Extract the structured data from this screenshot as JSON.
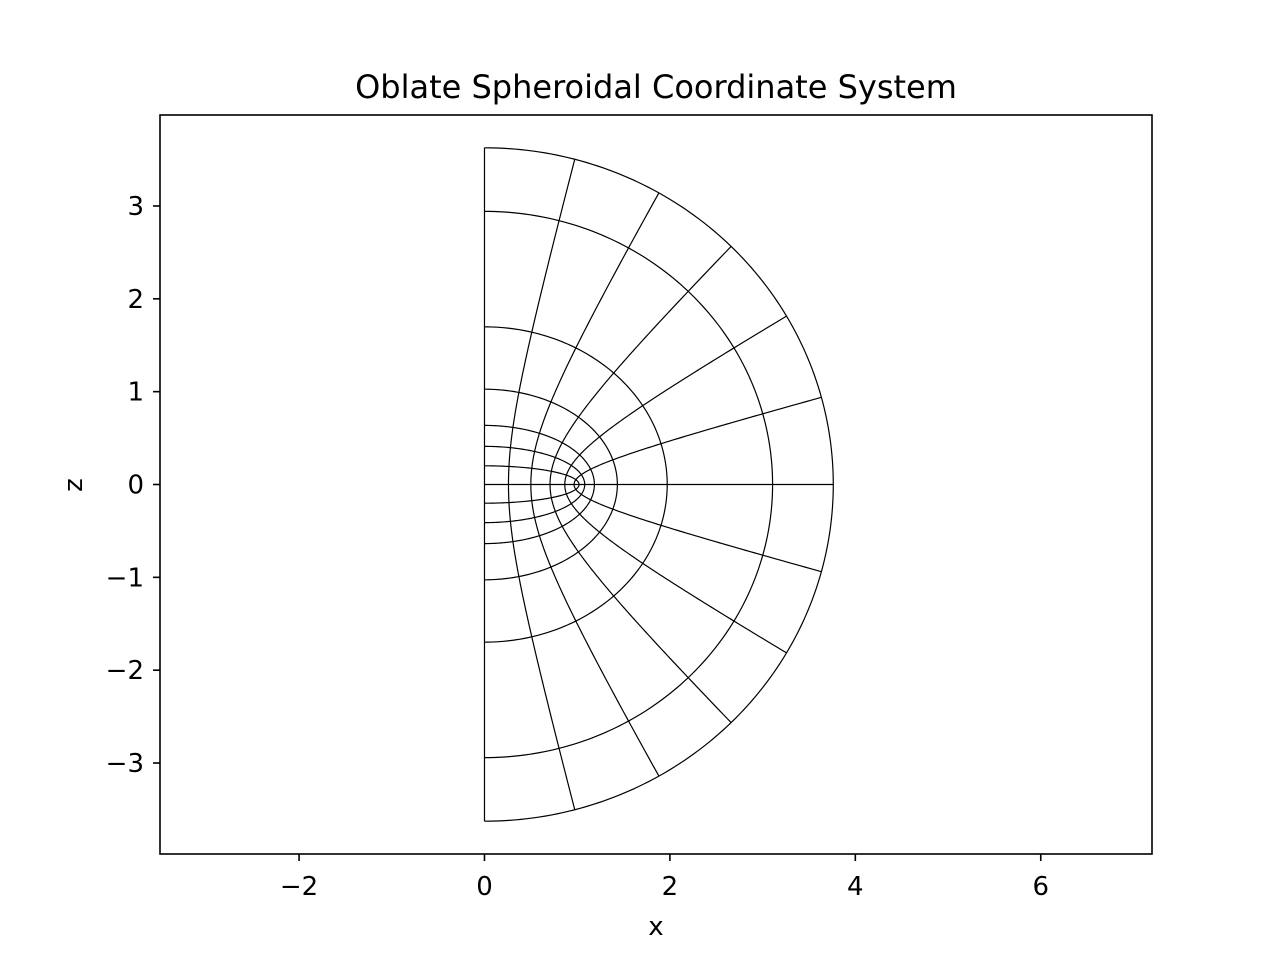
{
  "chart_data": {
    "type": "line",
    "title": "Oblate Spheroidal Coordinate System",
    "xlabel": "x",
    "ylabel": "z",
    "xlim": [
      -3.5,
      7.2
    ],
    "ylim": [
      -3.98,
      3.98
    ],
    "xticks": [
      -2,
      0,
      2,
      4,
      6
    ],
    "yticks": [
      -3,
      -2,
      -1,
      0,
      1,
      2,
      3
    ],
    "xtick_labels": [
      "−2",
      "0",
      "2",
      "4",
      "6"
    ],
    "ytick_labels": [
      "−3",
      "−2",
      "−1",
      "0",
      "1",
      "2",
      "3"
    ],
    "grid": false,
    "legend": "none",
    "coordinate_system": {
      "focal_distance_a": 1,
      "mu_values": [
        0,
        0.2,
        0.4,
        0.6,
        0.9,
        1.3,
        1.8,
        2.0
      ],
      "nu_values_deg": [
        -90,
        -75,
        -60,
        -45,
        -30,
        -15,
        0,
        15,
        30,
        45,
        60,
        75,
        90
      ],
      "equations": {
        "x": "a*cosh(mu)*cos(nu)",
        "z": "a*sinh(mu)*sin(nu)"
      }
    },
    "line_color": "#000000"
  }
}
